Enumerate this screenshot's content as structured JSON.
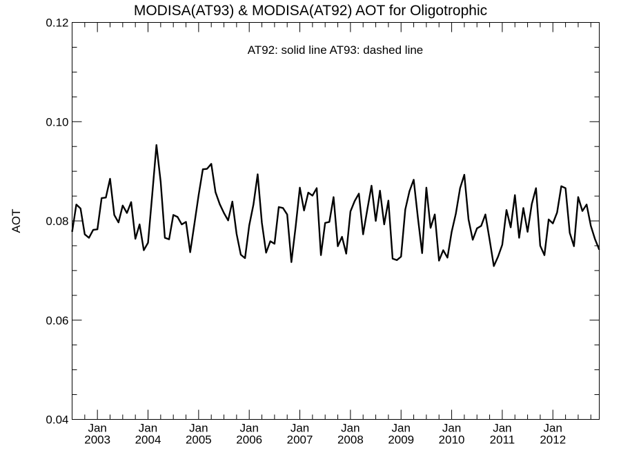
{
  "chart_data": {
    "type": "line",
    "title": "MODISA(AT93) & MODISA(AT92)  AOT for Oligotrophic",
    "annotation": "AT92: solid line   AT93: dashed line",
    "xlabel": "",
    "ylabel": "AOT",
    "ylim": [
      0.04,
      0.12
    ],
    "xlim": [
      "2002-07",
      "2012-12"
    ],
    "y_ticks": [
      "0.04",
      "0.06",
      "0.08",
      "0.10",
      "0.12"
    ],
    "x_ticks": [
      {
        "month": "Jan",
        "year": "2003",
        "date": "2003-01"
      },
      {
        "month": "Jan",
        "year": "2004",
        "date": "2004-01"
      },
      {
        "month": "Jan",
        "year": "2005",
        "date": "2005-01"
      },
      {
        "month": "Jan",
        "year": "2006",
        "date": "2006-01"
      },
      {
        "month": "Jan",
        "year": "2007",
        "date": "2007-01"
      },
      {
        "month": "Jan",
        "year": "2008",
        "date": "2008-01"
      },
      {
        "month": "Jan",
        "year": "2009",
        "date": "2009-01"
      },
      {
        "month": "Jan",
        "year": "2010",
        "date": "2010-01"
      },
      {
        "month": "Jan",
        "year": "2011",
        "date": "2011-01"
      },
      {
        "month": "Jan",
        "year": "2012",
        "date": "2012-01"
      }
    ],
    "grid": false,
    "series": [
      {
        "style": "solid",
        "color": "#000000",
        "start": "2002-07",
        "x": [
          "2002-07",
          "2002-08",
          "2002-09",
          "2002-10",
          "2002-11",
          "2002-12",
          "2003-01",
          "2003-02",
          "2003-03",
          "2003-04",
          "2003-05",
          "2003-06",
          "2003-07",
          "2003-08",
          "2003-09",
          "2003-10",
          "2003-11",
          "2003-12",
          "2004-01",
          "2004-02",
          "2004-03",
          "2004-04",
          "2004-05",
          "2004-06",
          "2004-07",
          "2004-08",
          "2004-09",
          "2004-10",
          "2004-11",
          "2004-12",
          "2005-01",
          "2005-02",
          "2005-03",
          "2005-04",
          "2005-05",
          "2005-06",
          "2005-07",
          "2005-08",
          "2005-09",
          "2005-10",
          "2005-11",
          "2005-12",
          "2006-01",
          "2006-02",
          "2006-03",
          "2006-04",
          "2006-05",
          "2006-06",
          "2006-07",
          "2006-08",
          "2006-09",
          "2006-10",
          "2006-11",
          "2006-12",
          "2007-01",
          "2007-02",
          "2007-03",
          "2007-04",
          "2007-05",
          "2007-06",
          "2007-07",
          "2007-08",
          "2007-09",
          "2007-10",
          "2007-11",
          "2007-12",
          "2008-01",
          "2008-02",
          "2008-03",
          "2008-04",
          "2008-05",
          "2008-06",
          "2008-07",
          "2008-08",
          "2008-09",
          "2008-10",
          "2008-11",
          "2008-12",
          "2009-01",
          "2009-02",
          "2009-03",
          "2009-04",
          "2009-05",
          "2009-06",
          "2009-07",
          "2009-08",
          "2009-09",
          "2009-10",
          "2009-11",
          "2009-12",
          "2010-01",
          "2010-02",
          "2010-03",
          "2010-04",
          "2010-05",
          "2010-06",
          "2010-07",
          "2010-08",
          "2010-09",
          "2010-10",
          "2010-11",
          "2010-12",
          "2011-01",
          "2011-02",
          "2011-03",
          "2011-04",
          "2011-05",
          "2011-06",
          "2011-07",
          "2011-08",
          "2011-09",
          "2011-10",
          "2011-11",
          "2011-12",
          "2012-01",
          "2012-02",
          "2012-03",
          "2012-04",
          "2012-05",
          "2012-06",
          "2012-07",
          "2012-08",
          "2012-09",
          "2012-10",
          "2012-11",
          "2012-12"
        ],
        "values": [
          0.0778,
          0.0833,
          0.0825,
          0.0773,
          0.0766,
          0.0782,
          0.0783,
          0.0846,
          0.0847,
          0.0885,
          0.0812,
          0.0797,
          0.0831,
          0.0816,
          0.0838,
          0.0764,
          0.0793,
          0.0741,
          0.0756,
          0.0853,
          0.0953,
          0.0879,
          0.0766,
          0.0763,
          0.0812,
          0.0808,
          0.0793,
          0.0798,
          0.0737,
          0.0794,
          0.0852,
          0.0904,
          0.0905,
          0.0915,
          0.0858,
          0.0834,
          0.0816,
          0.0801,
          0.0839,
          0.0774,
          0.0732,
          0.0725,
          0.0791,
          0.0833,
          0.0894,
          0.0796,
          0.0736,
          0.0759,
          0.0754,
          0.0828,
          0.0826,
          0.0813,
          0.0717,
          0.0788,
          0.0867,
          0.0821,
          0.0857,
          0.0851,
          0.0866,
          0.0731,
          0.0796,
          0.0798,
          0.0848,
          0.0749,
          0.0768,
          0.0734,
          0.0819,
          0.084,
          0.0855,
          0.0773,
          0.0823,
          0.0871,
          0.08,
          0.0861,
          0.0793,
          0.0841,
          0.0724,
          0.0721,
          0.0728,
          0.0823,
          0.086,
          0.0883,
          0.0806,
          0.0735,
          0.0867,
          0.0786,
          0.0813,
          0.072,
          0.0741,
          0.0726,
          0.0778,
          0.0815,
          0.0866,
          0.0893,
          0.0803,
          0.0762,
          0.0785,
          0.079,
          0.0813,
          0.0762,
          0.0709,
          0.0728,
          0.0752,
          0.0822,
          0.0787,
          0.0852,
          0.0766,
          0.0826,
          0.0778,
          0.0834,
          0.0866,
          0.075,
          0.0731,
          0.0803,
          0.0795,
          0.0817,
          0.087,
          0.0866,
          0.0776,
          0.0749,
          0.0848,
          0.082,
          0.0833,
          0.079,
          0.0763,
          0.0742
        ]
      }
    ]
  }
}
